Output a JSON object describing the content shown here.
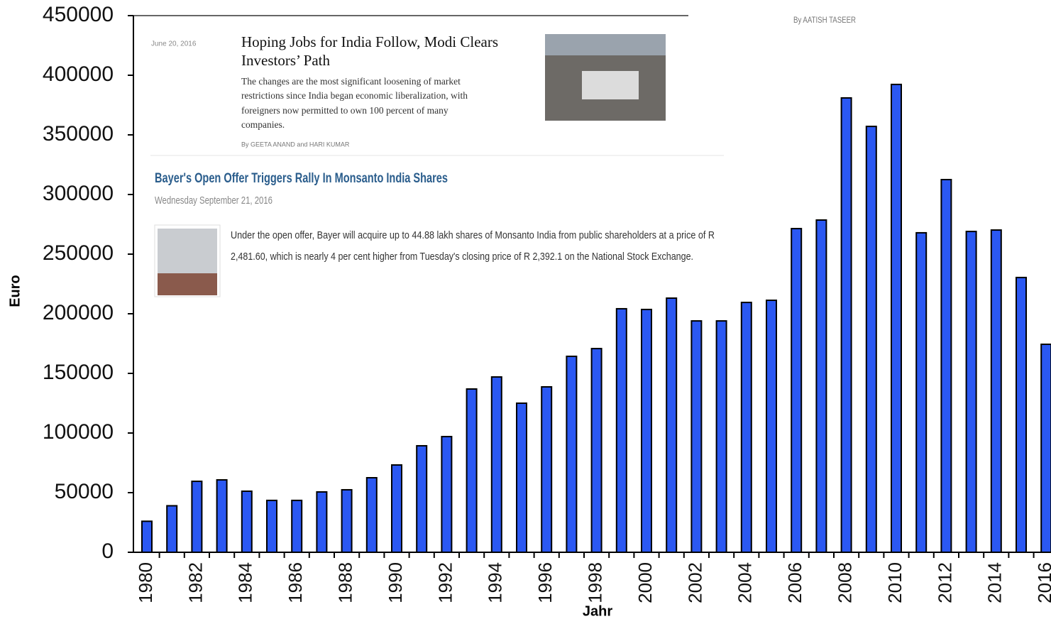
{
  "chart_data": {
    "type": "bar",
    "categories": [
      "1980",
      null,
      "1982",
      null,
      "1984",
      null,
      "1986",
      null,
      "1988",
      null,
      "1990",
      null,
      "1992",
      null,
      "1994",
      null,
      "1996",
      null,
      "1998",
      null,
      "2000",
      null,
      "2002",
      null,
      "2004",
      null,
      "2006",
      null,
      "2008",
      null,
      "2010",
      null,
      "2012",
      null,
      "2014",
      null,
      "2016"
    ],
    "values": [
      26000,
      39000,
      59500,
      60700,
      51200,
      43500,
      43500,
      50600,
      52400,
      62500,
      73200,
      89300,
      97000,
      136900,
      147000,
      125000,
      138700,
      164300,
      170800,
      204200,
      203600,
      213100,
      194000,
      194000,
      209500,
      211300,
      271400,
      278600,
      381000,
      357100,
      392300,
      267900,
      312500,
      269000,
      270200,
      230400,
      174400
    ],
    "color": "#2b58f2",
    "ylim": [
      0,
      450000
    ],
    "yticks": [
      0,
      50000,
      100000,
      150000,
      200000,
      250000,
      300000,
      350000,
      400000,
      450000
    ],
    "xlabel": "Jahr",
    "ylabel": "Euro"
  },
  "articles": [
    {
      "date": "June 20, 2016",
      "title": [
        "Hoping Jobs for India Follow, Modi Clears",
        "Investors’ Path"
      ],
      "summary": [
        "The changes are the most significant loosening of market",
        "restrictions since India began economic liberalization, with",
        "foreigners now permitted to own 100 percent of many",
        "companies."
      ],
      "byline": "By GEETA ANAND and HARI KUMAR"
    },
    {
      "title": "Bayer's Open Offer Triggers Rally In Monsanto India Shares",
      "date": "Wednesday September 21, 2016",
      "summary": [
        "Under the open offer, Bayer will acquire up to 44.88 lakh shares of Monsanto India from public shareholders at a price of R",
        "2,481.60, which is nearly 4 per cent higher from Tuesday's closing price of R 2,392.1 on the National Stock Exchange."
      ]
    },
    {
      "byline": "By AATISH TASEER"
    }
  ]
}
